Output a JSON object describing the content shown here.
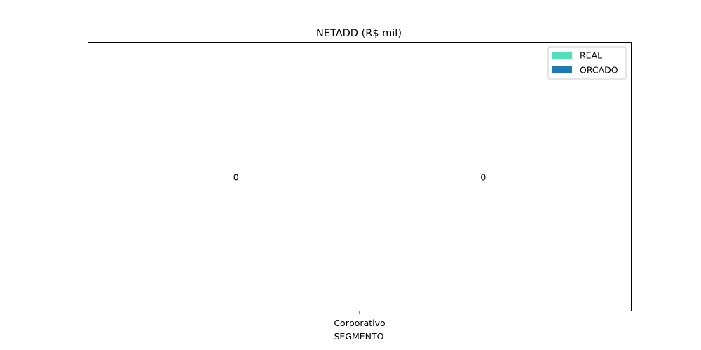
{
  "chart_data": {
    "type": "bar",
    "title": "NETADD (R$ mil)",
    "xlabel": "SEGMENTO",
    "ylabel": "",
    "categories": [
      "Corporativo"
    ],
    "series": [
      {
        "name": "REAL",
        "values": [
          0
        ],
        "color": "#4fe0bb"
      },
      {
        "name": "ORCADO",
        "values": [
          0
        ],
        "color": "#1f77b4"
      }
    ],
    "data_labels": [
      "0",
      "0"
    ],
    "legend": "top-right",
    "grid": false,
    "yaxis_visible": false
  }
}
